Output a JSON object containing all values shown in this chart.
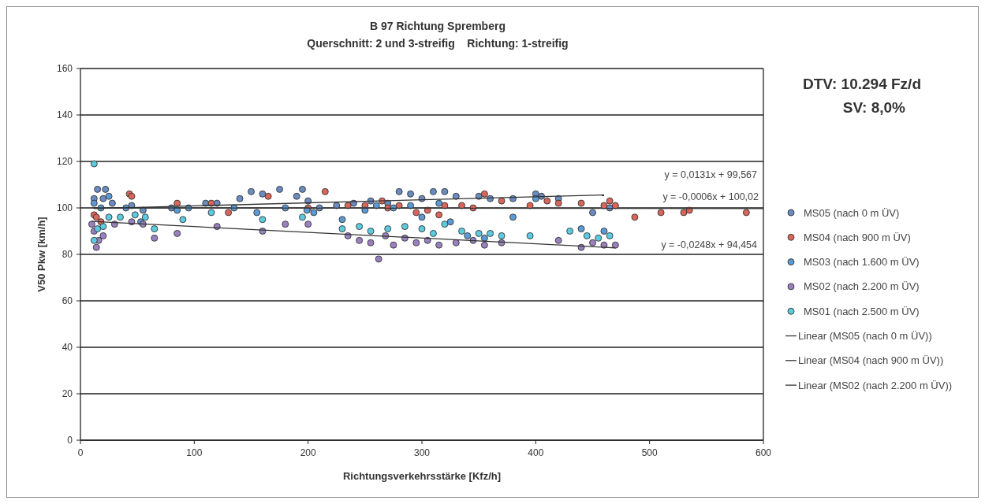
{
  "chart_data": {
    "type": "scatter",
    "title": "B 97 Richtung Spremberg",
    "subtitle": "Querschnitt: 2 und 3-streifig    Richtung: 1-streifig",
    "xlabel": "Richtungsverkehrsstärke [Kfz/h]",
    "ylabel": "V50 Pkw [km/h]",
    "xlim": [
      0,
      600
    ],
    "xticks": [
      0,
      100,
      200,
      300,
      400,
      500,
      600
    ],
    "ylim": [
      0,
      160
    ],
    "yticks": [
      0,
      20,
      40,
      60,
      80,
      100,
      120,
      140,
      160
    ],
    "grid": "y",
    "legend": "right",
    "marker": "circle",
    "annotations": [
      "DTV: 10.294 Fz/d",
      "SV: 8,0%",
      "y = 0,0131x + 99,567",
      "y = -0,0006x + 100,02",
      "y = -0,0248x + 94,454"
    ],
    "series": [
      {
        "name": "MS05 (nach 0 m ÜV)",
        "color": "#6a8cc0",
        "x": [
          12,
          15,
          20,
          22,
          28,
          45,
          55,
          80,
          110,
          120,
          140,
          150,
          160,
          175,
          190,
          195,
          200,
          210,
          225,
          240,
          255,
          270,
          280,
          290,
          300,
          310,
          320,
          330,
          350,
          360,
          380,
          400,
          405,
          420,
          450,
          465
        ],
        "values": [
          104,
          108,
          104,
          108,
          102,
          101,
          99,
          100,
          102,
          102,
          104,
          107,
          106,
          108,
          105,
          108,
          103,
          100,
          101,
          102,
          103,
          102,
          107,
          106,
          104,
          107,
          107,
          105,
          105,
          104,
          104,
          106,
          105,
          104,
          98,
          100
        ]
      },
      {
        "name": "MS04 (nach 900 m ÜV)",
        "color": "#d9665a",
        "x": [
          12,
          18,
          14,
          43,
          45,
          85,
          115,
          130,
          165,
          200,
          215,
          235,
          250,
          265,
          270,
          280,
          295,
          305,
          315,
          320,
          335,
          345,
          355,
          370,
          395,
          410,
          420,
          440,
          460,
          465,
          470,
          487,
          510,
          530,
          535,
          585
        ],
        "values": [
          97,
          94,
          96,
          106,
          105,
          102,
          102,
          98,
          105,
          100,
          107,
          101,
          101,
          103,
          100,
          101,
          98,
          99,
          97,
          101,
          101,
          100,
          106,
          103,
          101,
          103,
          102,
          102,
          101,
          103,
          101,
          96,
          98,
          98,
          99,
          98
        ]
      },
      {
        "name": "MS03 (nach 1.600 m ÜV)",
        "color": "#5b9bd5",
        "x": [
          12,
          18,
          25,
          40,
          53,
          85,
          95,
          135,
          155,
          180,
          199,
          205,
          230,
          250,
          260,
          275,
          290,
          300,
          315,
          325,
          340,
          355,
          380,
          400,
          440,
          460
        ],
        "values": [
          102,
          100,
          105,
          100,
          94,
          99,
          100,
          100,
          98,
          100,
          99,
          98,
          95,
          99,
          101,
          100,
          101,
          96,
          102,
          94,
          88,
          87,
          96,
          104,
          91,
          90
        ]
      },
      {
        "name": "MS02 (nach 2.200 m ÜV)",
        "color": "#9a80bf",
        "x": [
          10,
          12,
          14,
          16,
          20,
          30,
          45,
          55,
          65,
          85,
          120,
          160,
          180,
          200,
          235,
          245,
          255,
          262,
          268,
          275,
          285,
          295,
          305,
          315,
          330,
          345,
          355,
          370,
          420,
          440,
          450,
          460,
          470
        ],
        "values": [
          93,
          90,
          83,
          86,
          88,
          93,
          94,
          93,
          87,
          89,
          92,
          90,
          93,
          93,
          88,
          86,
          85,
          78,
          88,
          84,
          87,
          85,
          86,
          84,
          85,
          86,
          84,
          85,
          86,
          83,
          85,
          84,
          84
        ]
      },
      {
        "name": "MS01 (nach 2.500 m ÜV)",
        "color": "#5ccbe0",
        "x": [
          12,
          12,
          15,
          20,
          25,
          35,
          48,
          57,
          65,
          90,
          115,
          160,
          195,
          230,
          245,
          255,
          270,
          285,
          300,
          310,
          320,
          335,
          350,
          360,
          370,
          395,
          430,
          445,
          455,
          465
        ],
        "values": [
          119,
          86,
          91,
          92,
          96,
          96,
          97,
          96,
          91,
          95,
          98,
          95,
          96,
          91,
          92,
          90,
          91,
          92,
          91,
          89,
          93,
          90,
          89,
          89,
          88,
          88,
          90,
          88,
          87,
          88
        ]
      },
      {
        "name": "Linear (MS05 (nach 0 m ÜV))",
        "type": "line",
        "color": "#333333",
        "marker": "none",
        "x": [
          12,
          460
        ],
        "values": [
          99.7,
          105.6
        ]
      },
      {
        "name": "Linear (MS04 (nach 900 m ÜV))",
        "type": "line",
        "color": "#333333",
        "marker": "none",
        "x": [
          10,
          600
        ],
        "values": [
          100,
          99.7
        ]
      },
      {
        "name": "Linear (MS02 (nach 2.200 m ÜV))",
        "type": "line",
        "color": "#333333",
        "marker": "none",
        "x": [
          10,
          470
        ],
        "values": [
          94.2,
          82.8
        ]
      }
    ]
  }
}
